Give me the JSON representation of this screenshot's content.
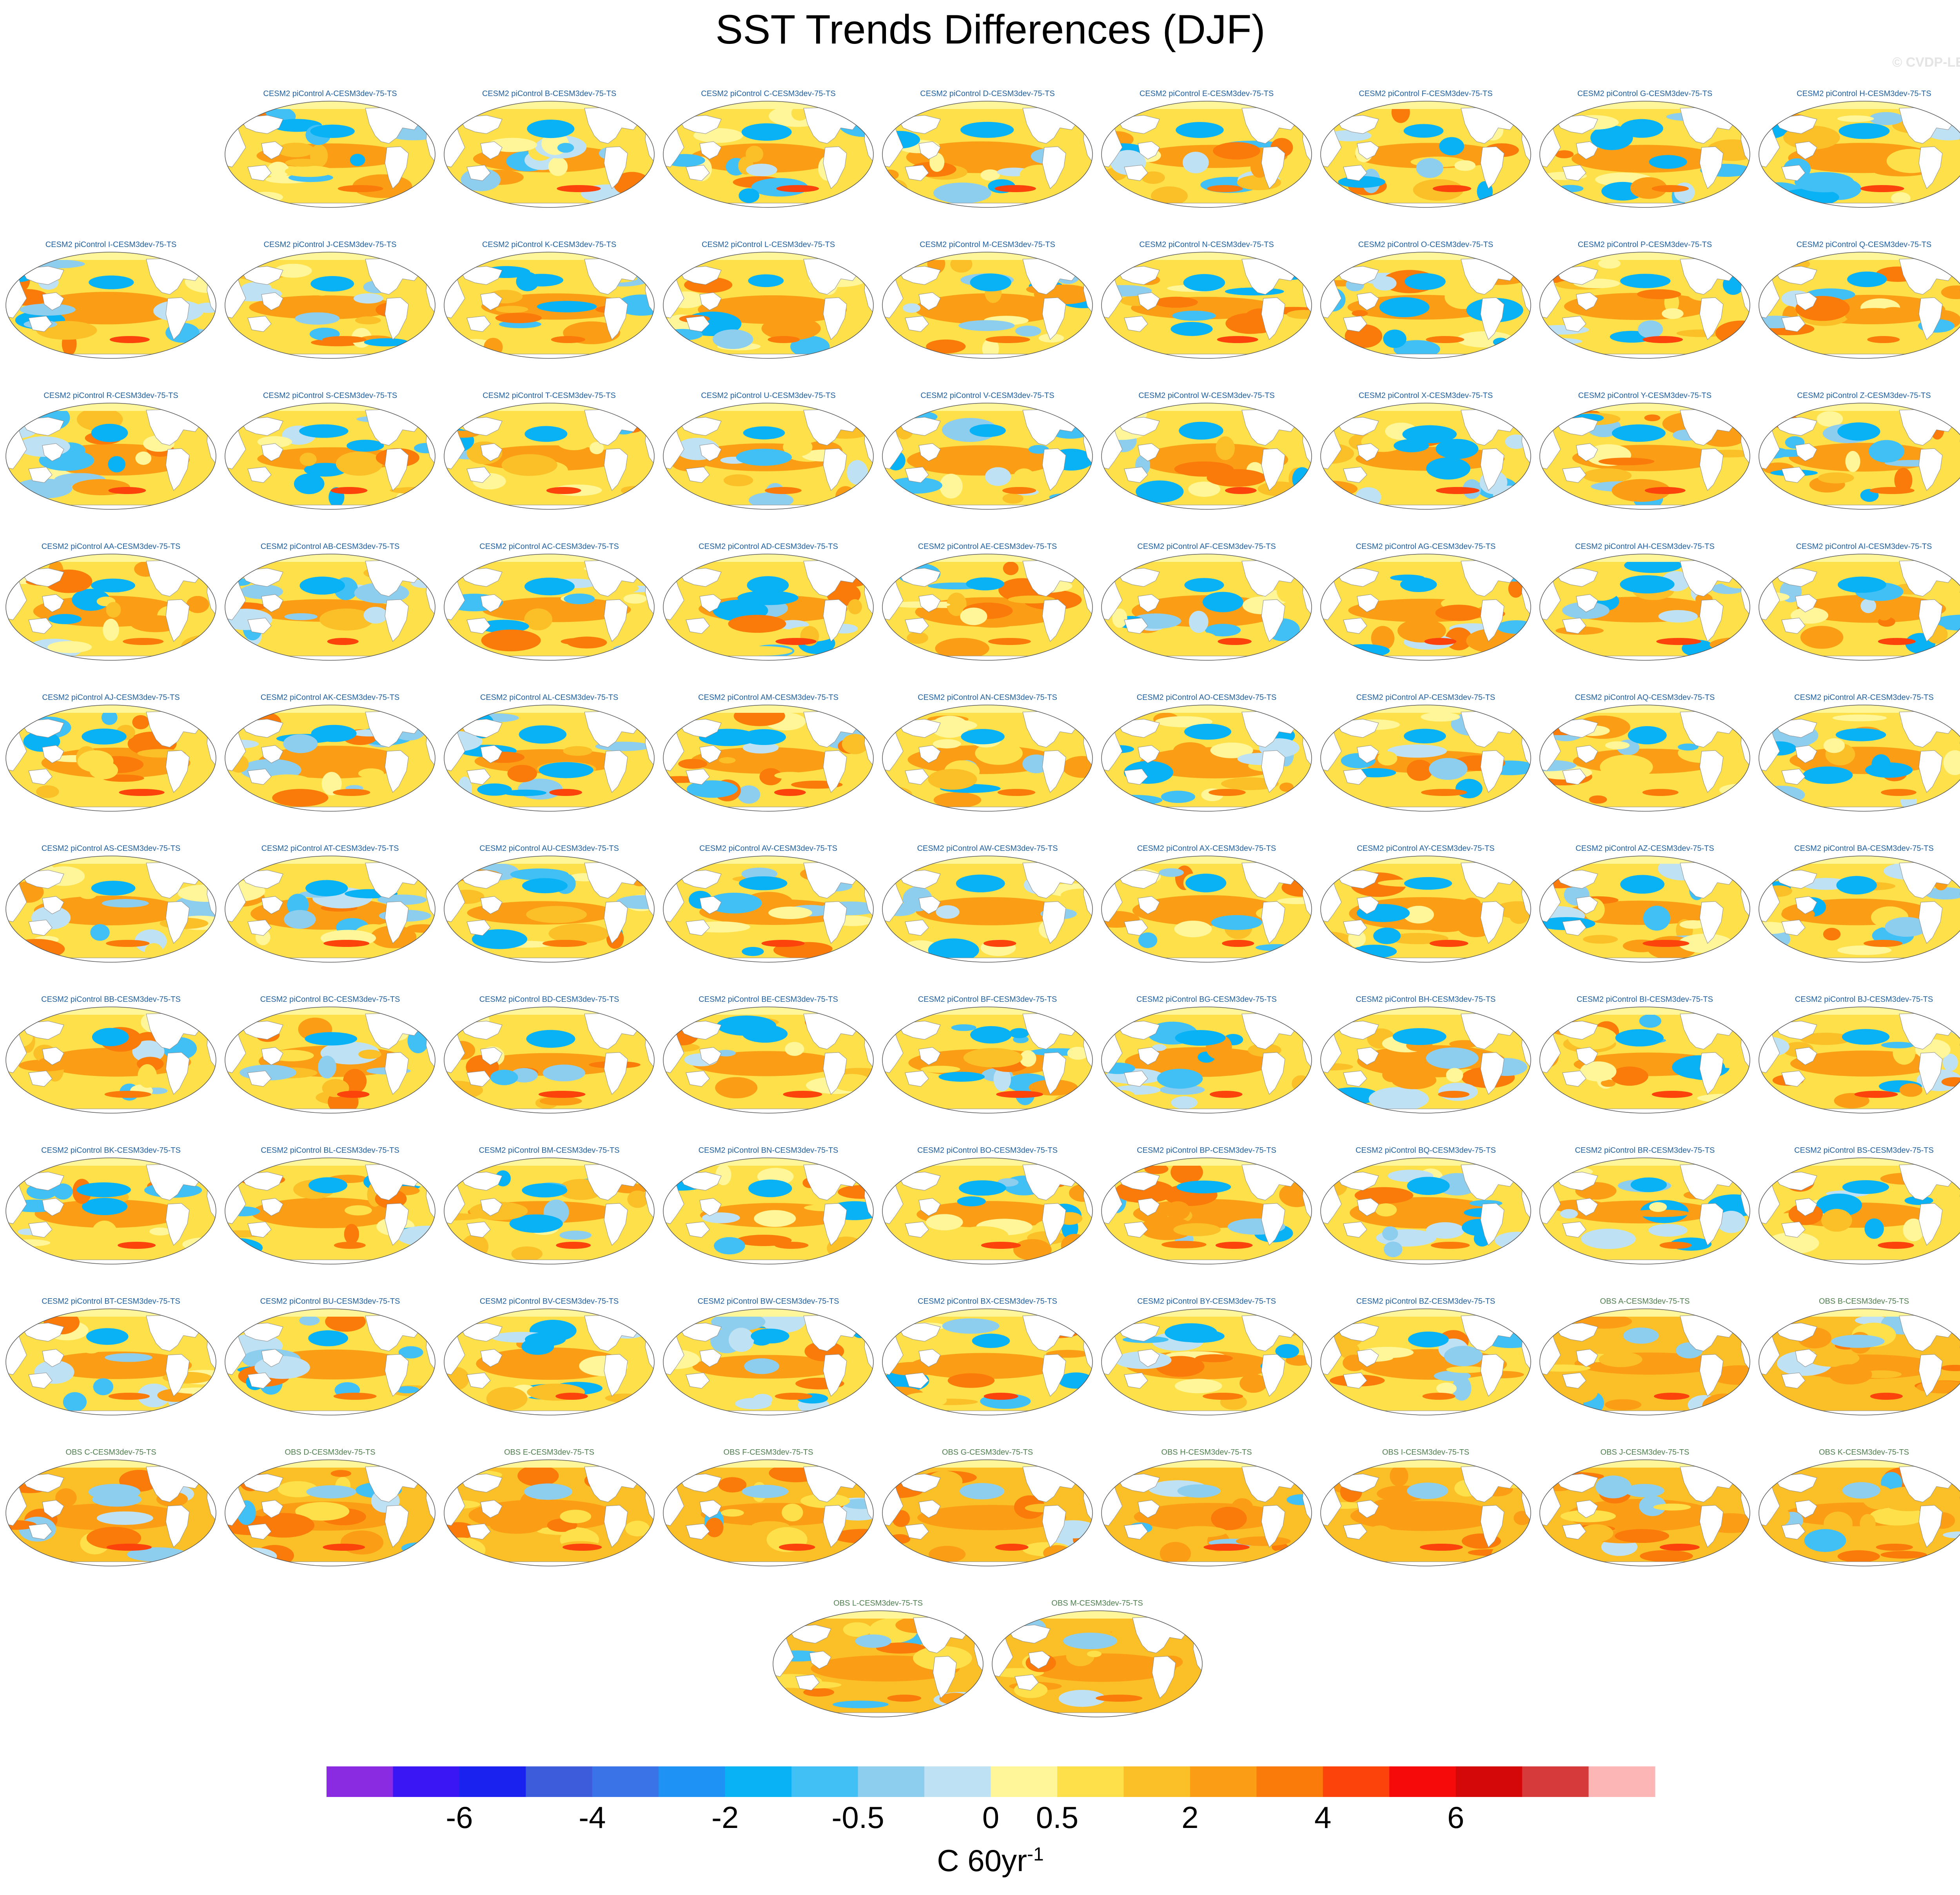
{
  "title": "SST Trends Differences (DJF)",
  "watermark": "© CVDP-LE",
  "colorbar": {
    "colors": [
      "#8a2be2",
      "#3a16f5",
      "#1a22f0",
      "#3d5cdc",
      "#3a73e8",
      "#1f93f5",
      "#09b1f5",
      "#40c0f5",
      "#8dcdee",
      "#bfe1f4",
      "#fff69a",
      "#fde04a",
      "#fbbf28",
      "#fb9e16",
      "#fb7b0a",
      "#fb430b",
      "#f70a0a",
      "#d40808",
      "#d63a3a",
      "#fdb6b6"
    ],
    "tick_labels": [
      "-6",
      "-4",
      "-2",
      "-0.5",
      "0",
      "0.5",
      "2",
      "4",
      "6"
    ],
    "tick_boundaries": [
      2,
      4,
      6,
      8,
      10,
      11,
      13,
      15,
      17
    ]
  },
  "units": {
    "base": "C 60yr",
    "sup": "-1"
  },
  "chart_data": {
    "type": "heatmap",
    "title": "SST Trends Differences (DJF)",
    "variable": "SST trend difference",
    "season": "DJF",
    "units": "C 60yr-1",
    "levels": [
      -8,
      -7,
      -6,
      -5,
      -4,
      -3,
      -2,
      -1,
      -0.5,
      -0.25,
      0,
      0.25,
      0.5,
      1,
      2,
      3,
      4,
      5,
      6,
      7,
      8
    ],
    "colorbar_tick_labels": [
      "-6",
      "-4",
      "-2",
      "-0.5",
      "0",
      "0.5",
      "2",
      "4",
      "6"
    ],
    "panels": [
      {
        "label": "CESM2 piControl A-CESM3dev-75-TS",
        "kind": "model"
      },
      {
        "label": "CESM2 piControl B-CESM3dev-75-TS",
        "kind": "model"
      },
      {
        "label": "CESM2 piControl C-CESM3dev-75-TS",
        "kind": "model"
      },
      {
        "label": "CESM2 piControl D-CESM3dev-75-TS",
        "kind": "model"
      },
      {
        "label": "CESM2 piControl E-CESM3dev-75-TS",
        "kind": "model"
      },
      {
        "label": "CESM2 piControl F-CESM3dev-75-TS",
        "kind": "model"
      },
      {
        "label": "CESM2 piControl G-CESM3dev-75-TS",
        "kind": "model"
      },
      {
        "label": "CESM2 piControl H-CESM3dev-75-TS",
        "kind": "model"
      },
      {
        "label": "CESM2 piControl I-CESM3dev-75-TS",
        "kind": "model"
      },
      {
        "label": "CESM2 piControl J-CESM3dev-75-TS",
        "kind": "model"
      },
      {
        "label": "CESM2 piControl K-CESM3dev-75-TS",
        "kind": "model"
      },
      {
        "label": "CESM2 piControl L-CESM3dev-75-TS",
        "kind": "model"
      },
      {
        "label": "CESM2 piControl M-CESM3dev-75-TS",
        "kind": "model"
      },
      {
        "label": "CESM2 piControl N-CESM3dev-75-TS",
        "kind": "model"
      },
      {
        "label": "CESM2 piControl O-CESM3dev-75-TS",
        "kind": "model"
      },
      {
        "label": "CESM2 piControl P-CESM3dev-75-TS",
        "kind": "model"
      },
      {
        "label": "CESM2 piControl Q-CESM3dev-75-TS",
        "kind": "model"
      },
      {
        "label": "CESM2 piControl R-CESM3dev-75-TS",
        "kind": "model"
      },
      {
        "label": "CESM2 piControl S-CESM3dev-75-TS",
        "kind": "model"
      },
      {
        "label": "CESM2 piControl T-CESM3dev-75-TS",
        "kind": "model"
      },
      {
        "label": "CESM2 piControl U-CESM3dev-75-TS",
        "kind": "model"
      },
      {
        "label": "CESM2 piControl V-CESM3dev-75-TS",
        "kind": "model"
      },
      {
        "label": "CESM2 piControl W-CESM3dev-75-TS",
        "kind": "model"
      },
      {
        "label": "CESM2 piControl X-CESM3dev-75-TS",
        "kind": "model"
      },
      {
        "label": "CESM2 piControl Y-CESM3dev-75-TS",
        "kind": "model"
      },
      {
        "label": "CESM2 piControl Z-CESM3dev-75-TS",
        "kind": "model"
      },
      {
        "label": "CESM2 piControl AA-CESM3dev-75-TS",
        "kind": "model"
      },
      {
        "label": "CESM2 piControl AB-CESM3dev-75-TS",
        "kind": "model"
      },
      {
        "label": "CESM2 piControl AC-CESM3dev-75-TS",
        "kind": "model"
      },
      {
        "label": "CESM2 piControl AD-CESM3dev-75-TS",
        "kind": "model"
      },
      {
        "label": "CESM2 piControl AE-CESM3dev-75-TS",
        "kind": "model"
      },
      {
        "label": "CESM2 piControl AF-CESM3dev-75-TS",
        "kind": "model"
      },
      {
        "label": "CESM2 piControl AG-CESM3dev-75-TS",
        "kind": "model"
      },
      {
        "label": "CESM2 piControl AH-CESM3dev-75-TS",
        "kind": "model"
      },
      {
        "label": "CESM2 piControl AI-CESM3dev-75-TS",
        "kind": "model"
      },
      {
        "label": "CESM2 piControl AJ-CESM3dev-75-TS",
        "kind": "model"
      },
      {
        "label": "CESM2 piControl AK-CESM3dev-75-TS",
        "kind": "model"
      },
      {
        "label": "CESM2 piControl AL-CESM3dev-75-TS",
        "kind": "model"
      },
      {
        "label": "CESM2 piControl AM-CESM3dev-75-TS",
        "kind": "model"
      },
      {
        "label": "CESM2 piControl AN-CESM3dev-75-TS",
        "kind": "model"
      },
      {
        "label": "CESM2 piControl AO-CESM3dev-75-TS",
        "kind": "model"
      },
      {
        "label": "CESM2 piControl AP-CESM3dev-75-TS",
        "kind": "model"
      },
      {
        "label": "CESM2 piControl AQ-CESM3dev-75-TS",
        "kind": "model"
      },
      {
        "label": "CESM2 piControl AR-CESM3dev-75-TS",
        "kind": "model"
      },
      {
        "label": "CESM2 piControl AS-CESM3dev-75-TS",
        "kind": "model"
      },
      {
        "label": "CESM2 piControl AT-CESM3dev-75-TS",
        "kind": "model"
      },
      {
        "label": "CESM2 piControl AU-CESM3dev-75-TS",
        "kind": "model"
      },
      {
        "label": "CESM2 piControl AV-CESM3dev-75-TS",
        "kind": "model"
      },
      {
        "label": "CESM2 piControl AW-CESM3dev-75-TS",
        "kind": "model"
      },
      {
        "label": "CESM2 piControl AX-CESM3dev-75-TS",
        "kind": "model"
      },
      {
        "label": "CESM2 piControl AY-CESM3dev-75-TS",
        "kind": "model"
      },
      {
        "label": "CESM2 piControl AZ-CESM3dev-75-TS",
        "kind": "model"
      },
      {
        "label": "CESM2 piControl BA-CESM3dev-75-TS",
        "kind": "model"
      },
      {
        "label": "CESM2 piControl BB-CESM3dev-75-TS",
        "kind": "model"
      },
      {
        "label": "CESM2 piControl BC-CESM3dev-75-TS",
        "kind": "model"
      },
      {
        "label": "CESM2 piControl BD-CESM3dev-75-TS",
        "kind": "model"
      },
      {
        "label": "CESM2 piControl BE-CESM3dev-75-TS",
        "kind": "model"
      },
      {
        "label": "CESM2 piControl BF-CESM3dev-75-TS",
        "kind": "model"
      },
      {
        "label": "CESM2 piControl BG-CESM3dev-75-TS",
        "kind": "model"
      },
      {
        "label": "CESM2 piControl BH-CESM3dev-75-TS",
        "kind": "model"
      },
      {
        "label": "CESM2 piControl BI-CESM3dev-75-TS",
        "kind": "model"
      },
      {
        "label": "CESM2 piControl BJ-CESM3dev-75-TS",
        "kind": "model"
      },
      {
        "label": "CESM2 piControl BK-CESM3dev-75-TS",
        "kind": "model"
      },
      {
        "label": "CESM2 piControl BL-CESM3dev-75-TS",
        "kind": "model"
      },
      {
        "label": "CESM2 piControl BM-CESM3dev-75-TS",
        "kind": "model"
      },
      {
        "label": "CESM2 piControl BN-CESM3dev-75-TS",
        "kind": "model"
      },
      {
        "label": "CESM2 piControl BO-CESM3dev-75-TS",
        "kind": "model"
      },
      {
        "label": "CESM2 piControl BP-CESM3dev-75-TS",
        "kind": "model"
      },
      {
        "label": "CESM2 piControl BQ-CESM3dev-75-TS",
        "kind": "model"
      },
      {
        "label": "CESM2 piControl BR-CESM3dev-75-TS",
        "kind": "model"
      },
      {
        "label": "CESM2 piControl BS-CESM3dev-75-TS",
        "kind": "model"
      },
      {
        "label": "CESM2 piControl BT-CESM3dev-75-TS",
        "kind": "model"
      },
      {
        "label": "CESM2 piControl BU-CESM3dev-75-TS",
        "kind": "model"
      },
      {
        "label": "CESM2 piControl BV-CESM3dev-75-TS",
        "kind": "model"
      },
      {
        "label": "CESM2 piControl BW-CESM3dev-75-TS",
        "kind": "model"
      },
      {
        "label": "CESM2 piControl BX-CESM3dev-75-TS",
        "kind": "model"
      },
      {
        "label": "CESM2 piControl BY-CESM3dev-75-TS",
        "kind": "model"
      },
      {
        "label": "CESM2 piControl BZ-CESM3dev-75-TS",
        "kind": "model"
      },
      {
        "label": "OBS A-CESM3dev-75-TS",
        "kind": "obs"
      },
      {
        "label": "OBS B-CESM3dev-75-TS",
        "kind": "obs"
      },
      {
        "label": "OBS C-CESM3dev-75-TS",
        "kind": "obs"
      },
      {
        "label": "OBS D-CESM3dev-75-TS",
        "kind": "obs"
      },
      {
        "label": "OBS E-CESM3dev-75-TS",
        "kind": "obs"
      },
      {
        "label": "OBS F-CESM3dev-75-TS",
        "kind": "obs"
      },
      {
        "label": "OBS G-CESM3dev-75-TS",
        "kind": "obs"
      },
      {
        "label": "OBS H-CESM3dev-75-TS",
        "kind": "obs"
      },
      {
        "label": "OBS I-CESM3dev-75-TS",
        "kind": "obs"
      },
      {
        "label": "OBS J-CESM3dev-75-TS",
        "kind": "obs"
      },
      {
        "label": "OBS K-CESM3dev-75-TS",
        "kind": "obs"
      },
      {
        "label": "OBS L-CESM3dev-75-TS",
        "kind": "obs"
      },
      {
        "label": "OBS M-CESM3dev-75-TS",
        "kind": "obs"
      }
    ]
  }
}
